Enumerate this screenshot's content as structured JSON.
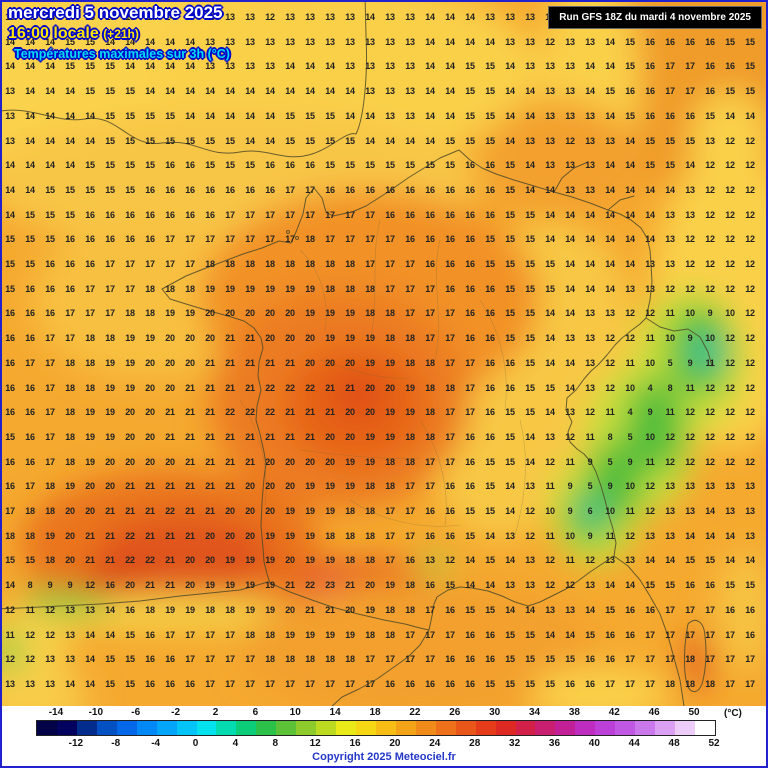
{
  "header": {
    "date_line": "mercredi 5 novembre 2025",
    "time_line": "16:00 locale",
    "time_offset": "(+21h)",
    "subtitle": "Températures maximales sur 3h (°C)",
    "run_info": "Run GFS 18Z du mardi 4 novembre 2025"
  },
  "footer": {
    "copyright": "Copyright 2025 Meteociel.fr"
  },
  "map": {
    "temperature_rows": [
      "13 13 14 14 15 13 13 14 14 13 13 13 13 12 13 13 13 13 14 13 13 14 14 14 13 13 13 12 12 13 14 14 15 15 16 16 15 15",
      "14 14 14 15 15 14 14 14 14 14 13 13 13 13 13 13 13 13 13 13 13 14 14 14 14 13 13 12 13 13 14 15 16 16 16 16 15 15",
      "14 14 14 15 15 15 14 14 14 14 13 13 13 13 14 14 14 13 13 13 13 14 14 15 15 14 13 13 13 14 14 15 16 17 17 16 16 15",
      "13 14 14 14 15 15 15 14 14 14 14 14 14 14 14 14 14 14 13 13 13 14 14 15 15 14 14 13 13 14 15 16 16 17 17 16 15 15",
      "13 14 14 14 14 15 15 15 15 14 14 14 14 14 15 15 15 14 14 13 13 14 14 15 15 14 14 13 13 13 14 15 16 16 16 15 14 14",
      "13 14 14 14 14 15 15 15 15 15 15 15 14 14 15 15 15 15 14 14 14 14 15 15 15 14 13 13 12 13 13 14 15 15 15 13 12 12",
      "14 14 14 14 15 15 15 15 16 16 15 15 15 16 16 16 15 15 15 15 15 15 15 16 16 15 14 13 13 13 14 14 15 15 14 12 12 12",
      "14 14 15 15 15 15 15 16 16 16 16 16 16 16 17 17 16 16 16 16 16 16 16 16 16 15 14 14 13 13 14 14 14 14 13 12 12 12",
      "14 15 15 15 16 16 16 16 16 16 16 17 17 17 17 17 17 17 17 16 16 16 16 16 16 15 15 14 14 14 14 14 14 13 13 12 12 12",
      "15 15 15 16 16 16 16 16 17 17 17 17 17 17 17 18 17 17 17 17 16 16 16 16 15 15 15 14 14 14 14 14 14 13 12 12 12 12",
      "15 15 16 16 16 17 17 17 17 17 18 18 18 18 18 18 18 18 17 17 17 16 16 16 15 15 15 15 14 14 14 14 13 13 12 12 12 12",
      "15 16 16 16 17 17 17 18 18 18 19 19 19 19 19 19 18 18 18 17 17 17 16 16 16 15 15 15 14 14 14 13 13 12 12 12 12 12",
      "16 16 16 17 17 17 18 18 19 19 20 20 20 20 20 19 19 19 18 18 17 17 17 16 16 15 15 14 14 13 13 12 12 11 10 9 10 12",
      "16 16 17 17 18 18 19 19 20 20 20 21 21 20 20 20 19 19 19 18 18 17 17 16 16 15 15 14 13 13 12 12 11 10 9 10 12 12",
      "16 17 17 18 18 19 19 20 20 20 21 21 21 21 21 20 20 20 19 19 18 18 17 17 16 16 15 14 14 13 12 11 10 5 9 11 12 12",
      "16 16 17 18 18 19 19 20 20 21 21 21 21 22 22 22 21 21 20 20 19 18 18 17 16 16 15 15 14 13 12 10 4 8 11 12 12 12",
      "16 16 17 18 19 19 20 20 21 21 21 22 22 22 21 21 21 20 20 19 19 18 17 17 16 15 15 14 13 12 11 4 9 11 12 12 12 12",
      "15 16 17 18 19 19 20 20 21 21 21 21 21 21 21 21 20 20 19 19 18 18 17 16 16 15 14 13 12 11 8 5 10 12 12 12 12 12",
      "16 16 17 18 19 20 20 20 20 21 21 21 21 20 20 20 20 19 19 18 18 17 17 16 15 15 14 12 11 9 5 9 11 12 12 12 12 12",
      "16 17 18 19 20 20 21 21 21 21 21 21 20 20 20 19 19 19 18 18 17 17 16 16 15 14 13 11 9 5 9 10 12 13 13 13 13 13",
      "17 18 18 20 20 21 21 21 22 21 21 20 20 20 19 19 19 18 18 17 17 16 16 15 15 14 12 10 9 6 10 11 12 13 13 14 13 13",
      "18 18 19 20 21 21 22 21 21 21 20 20 20 19 19 19 18 18 18 17 17 16 16 15 14 13 12 11 10 9 11 12 13 13 14 14 14 13",
      "15 15 18 20 21 21 22 22 21 20 20 19 19 19 20 19 19 18 18 17 16 13 12 14 15 14 13 12 11 12 13 13 14 14 15 15 14 14",
      "14 8 9 9 12 16 20 21 21 20 19 19 19 19 21 22 23 21 20 19 18 16 15 14 14 13 13 12 12 13 14 14 15 15 16 16 15 15",
      "12 11 12 13 13 14 16 18 19 19 18 18 19 19 20 21 21 20 19 18 18 17 16 15 15 14 14 13 13 14 15 16 16 17 17 17 16 16",
      "11 12 12 13 14 14 15 16 17 17 17 17 18 18 19 19 19 19 18 18 17 17 17 16 16 15 15 14 14 15 16 16 17 17 17 17 17 16",
      "12 12 13 13 14 15 15 16 16 17 17 17 17 18 18 18 18 18 17 17 17 17 16 16 16 15 15 15 15 16 16 17 17 17 18 17 17 17",
      "13 13 13 14 14 15 15 16 16 16 17 17 17 17 17 17 17 17 17 16 16 16 16 16 15 15 15 15 16 16 17 17 17 18 18 18 17 17"
    ]
  },
  "scale": {
    "unit_label": "(°C)",
    "top_labels": [
      "-14",
      "-10",
      "-6",
      "-2",
      "2",
      "6",
      "10",
      "14",
      "18",
      "22",
      "26",
      "30",
      "34",
      "38",
      "42",
      "46",
      "50"
    ],
    "bottom_labels": [
      "-12",
      "-8",
      "-4",
      "0",
      "4",
      "8",
      "12",
      "16",
      "20",
      "24",
      "28",
      "32",
      "36",
      "40",
      "44",
      "48",
      "52"
    ],
    "colors": [
      "#020247",
      "#03035f",
      "#032d8d",
      "#0350c2",
      "#0368e8",
      "#0388f8",
      "#03a6f8",
      "#03c4f8",
      "#03e0ee",
      "#03dcb0",
      "#0ccd78",
      "#2cc24a",
      "#5cc136",
      "#8ccb2b",
      "#bcdb20",
      "#e9ea17",
      "#f6d714",
      "#f5bd15",
      "#f3a317",
      "#f08a18",
      "#ee701a",
      "#ea551a",
      "#e43c1a",
      "#dd2824",
      "#d32048",
      "#ca1e70",
      "#c32098",
      "#bf2cc0",
      "#bc40d8",
      "#c058e4",
      "#cb78ec",
      "#dba0f4",
      "#eeccfa",
      "#ffffff"
    ]
  },
  "colors": {
    "frame_border": "#2121cd",
    "header_date": "#ffffff",
    "header_time": "#ffe608",
    "subtitle": "#00dcf4",
    "copyright": "#2438c8"
  }
}
